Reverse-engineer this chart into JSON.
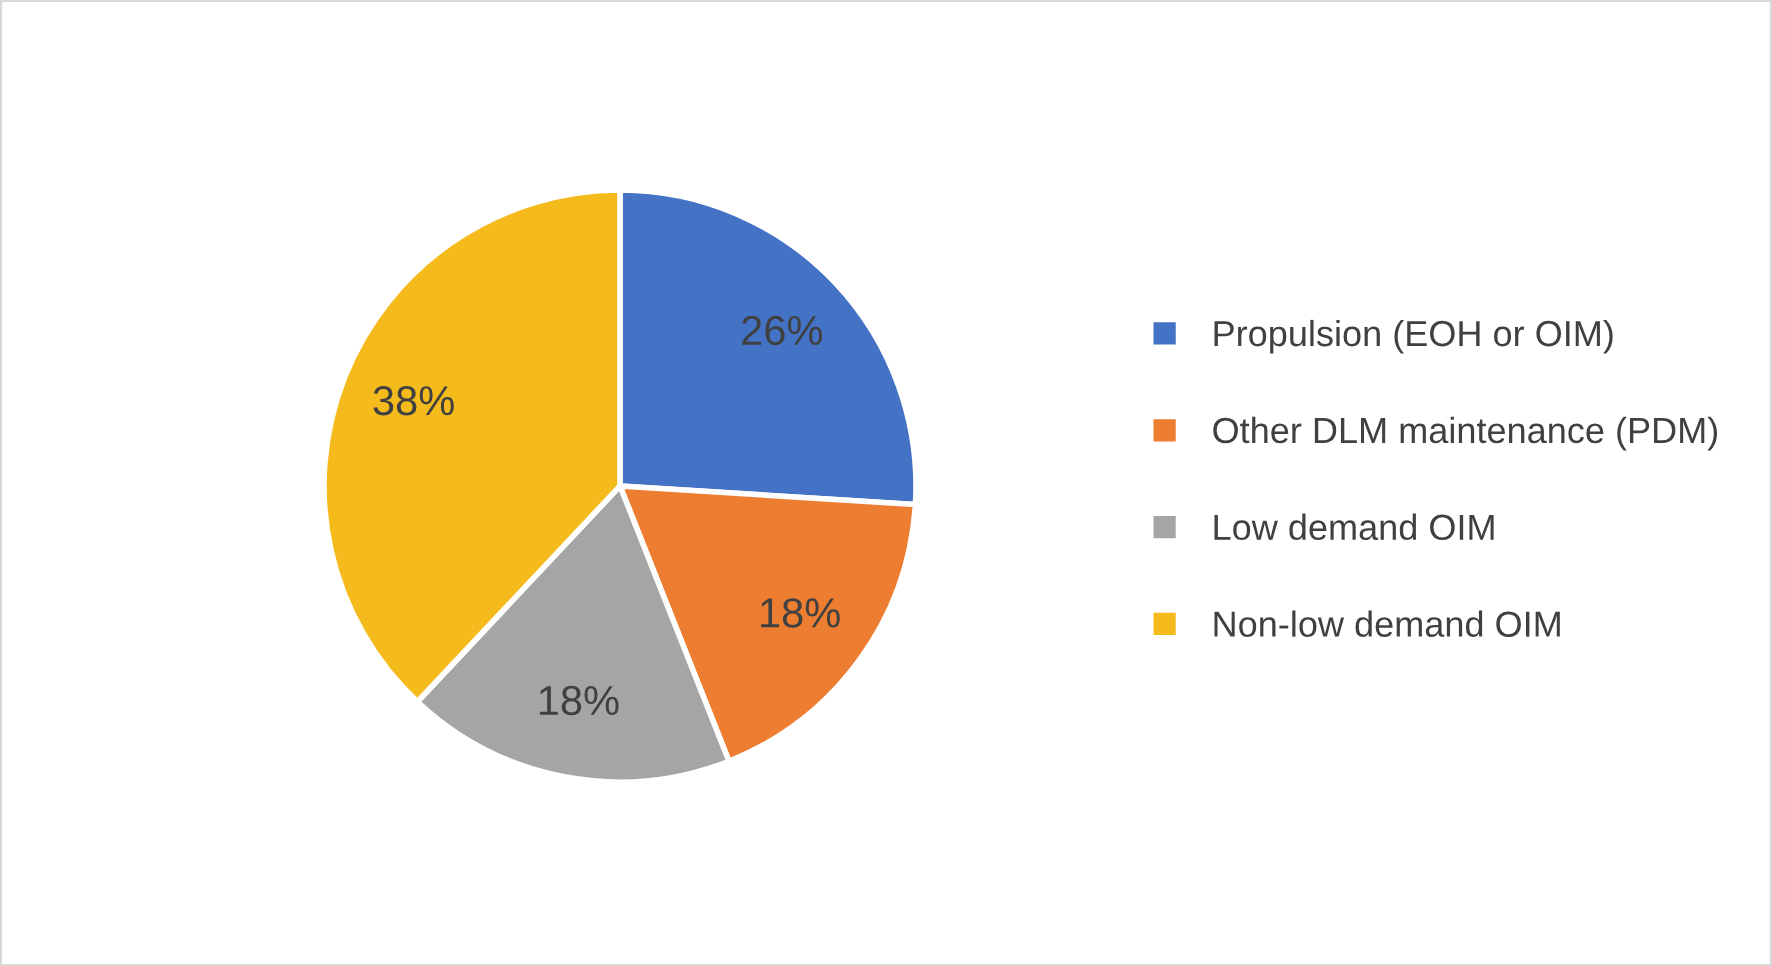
{
  "chart_data": {
    "type": "pie",
    "categories": [
      "Propulsion (EOH or OIM)",
      "Other DLM maintenance (PDM)",
      "Low demand OIM",
      "Non-low demand OIM"
    ],
    "values": [
      26,
      18,
      18,
      38
    ],
    "value_labels": [
      "26%",
      "18%",
      "18%",
      "38%"
    ],
    "colors": [
      "#4472c4",
      "#ed7d31",
      "#a5a5a5",
      "#f5bb1c"
    ],
    "legend": "right"
  }
}
